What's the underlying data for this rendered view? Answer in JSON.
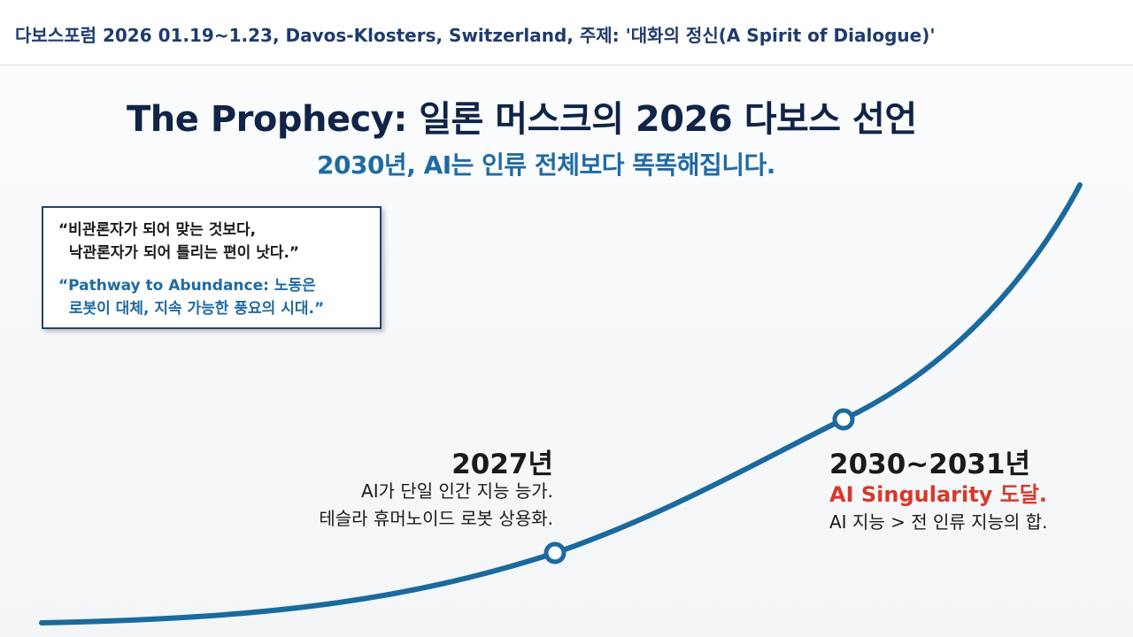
{
  "header": {
    "text": "다보스포럼 2026 01.19~1.23, Davos-Klosters, Switzerland, 주제: '대화의 정신(A Spirit of Dialogue)'"
  },
  "slide": {
    "title": "The Prophecy: 일론 머스크의 2026 다보스 선언",
    "subtitle": "2030년, AI는 인류 전체보다 똑똑해집니다.",
    "quote_box": {
      "quote1": "“비관론자가 되어 맞는 것보다,\n  낙관론자가 되어 틀리는 편이 낫다.”",
      "quote2": "“Pathway to Abundance: 노동은\n  로봇이 대체, 지속 가능한 풍요의 시대.”"
    },
    "milestones": [
      {
        "year": "2027년",
        "description": "AI가 단일 인간 지능 능가.\n테슬라 휴머노이드 로봇 상용화."
      },
      {
        "year": "2030~2031년",
        "highlight": "AI Singularity 도달.",
        "description": "AI 지능 > 전 인류 지능의 합."
      }
    ],
    "colors": {
      "title": "#0f2447",
      "accent_blue": "#1f6aa3",
      "curve": "#1a6a9e",
      "highlight_red": "#d63a2a"
    }
  }
}
